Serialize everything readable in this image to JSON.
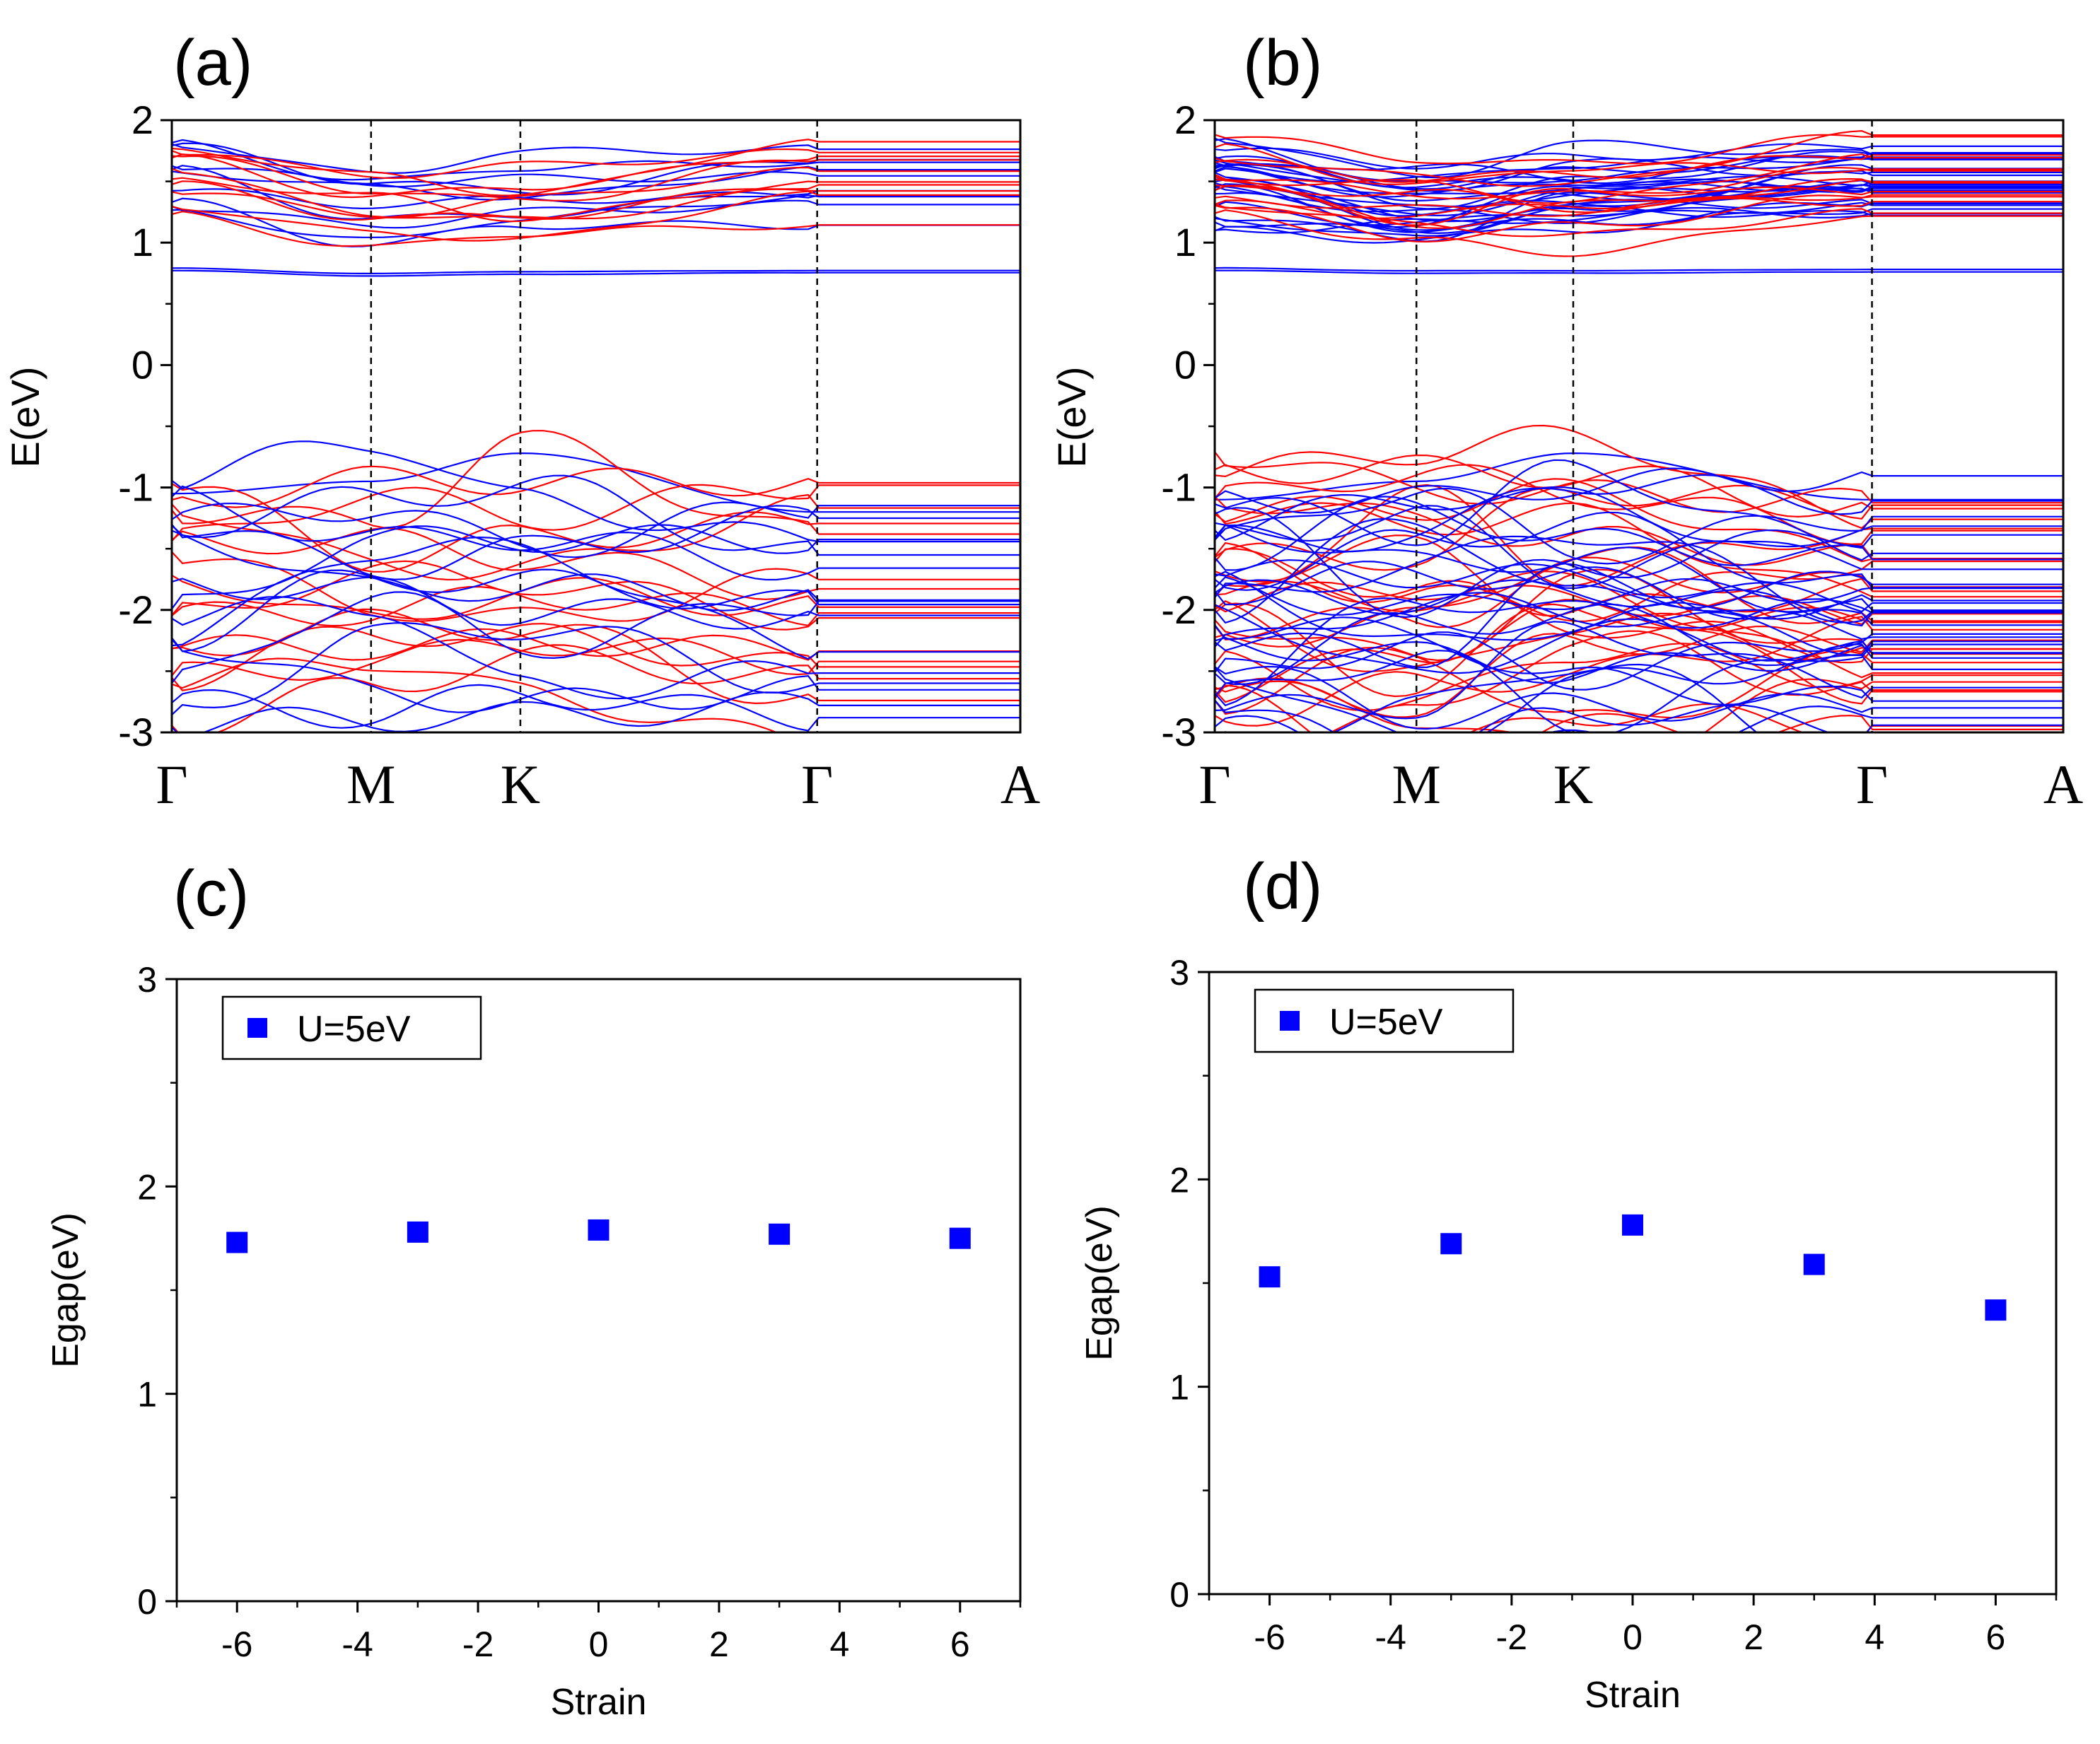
{
  "colors": {
    "spin_up": "#ff0000",
    "spin_down": "#0000ff",
    "marker": "#0000ff",
    "axis": "#000000"
  },
  "chart_data": [
    {
      "panel": "(a)",
      "type": "line",
      "title": "",
      "xlabel": "",
      "ylabel": "E(eV)",
      "ylim": [
        -3,
        2
      ],
      "yticks": [
        -3,
        -2,
        -1,
        0,
        1,
        2
      ],
      "kpoints": [
        "Γ",
        "M",
        "K",
        "Γ",
        "A"
      ],
      "kpath_positions": [
        0,
        0.2348,
        0.4108,
        0.7606,
        1.0
      ],
      "band_groups": [
        {
          "spin": "down",
          "center": [
            0.78,
            0.74,
            0.75,
            0.76,
            0.76
          ],
          "spread": 0.01,
          "count": 2
        },
        {
          "spin": "down",
          "center": [
            1.55,
            1.3,
            1.35,
            1.5,
            1.55
          ],
          "spread": 0.28,
          "count": 10
        },
        {
          "spin": "up",
          "center": [
            1.55,
            1.3,
            1.3,
            1.52,
            1.55
          ],
          "spread": 0.26,
          "count": 10
        },
        {
          "spin": "down",
          "center": [
            -1.05,
            -0.95,
            -0.72,
            -1.2,
            -1.2
          ],
          "spread": 0.0,
          "count": 1
        },
        {
          "spin": "up",
          "center": [
            -1.9,
            -1.9,
            -1.75,
            -1.9,
            -1.9
          ],
          "spread": 0.9,
          "count": 16
        },
        {
          "spin": "down",
          "center": [
            -2.0,
            -1.9,
            -1.8,
            -2.0,
            -2.0
          ],
          "spread": 0.95,
          "count": 16
        }
      ]
    },
    {
      "panel": "(b)",
      "type": "line",
      "title": "",
      "xlabel": "",
      "ylabel": "E(eV)",
      "ylim": [
        -3,
        2
      ],
      "yticks": [
        -3,
        -2,
        -1,
        0,
        1,
        2
      ],
      "kpoints": [
        "Γ",
        "M",
        "K",
        "Γ",
        "A"
      ],
      "kpath_positions": [
        0,
        0.2377,
        0.4225,
        0.7746,
        1.0
      ],
      "band_groups": [
        {
          "spin": "down",
          "center": [
            0.78,
            0.76,
            0.76,
            0.77,
            0.78
          ],
          "spread": 0.01,
          "count": 2
        },
        {
          "spin": "down",
          "center": [
            1.5,
            1.3,
            1.4,
            1.5,
            1.55
          ],
          "spread": 0.3,
          "count": 26
        },
        {
          "spin": "up",
          "center": [
            1.5,
            1.3,
            1.35,
            1.5,
            1.5
          ],
          "spread": 0.3,
          "count": 14
        },
        {
          "spin": "down",
          "center": [
            -1.1,
            -0.95,
            -0.72,
            -1.1,
            -1.15
          ],
          "spread": 0.0,
          "count": 1
        },
        {
          "spin": "up",
          "center": [
            -2.0,
            -2.0,
            -1.9,
            -2.0,
            -2.0
          ],
          "spread": 0.95,
          "count": 28
        },
        {
          "spin": "down",
          "center": [
            -2.0,
            -2.0,
            -1.95,
            -2.0,
            -2.0
          ],
          "spread": 0.95,
          "count": 32
        }
      ]
    },
    {
      "panel": "(c)",
      "type": "scatter",
      "title": "",
      "xlabel": "Strain",
      "ylabel": "Egap(eV)",
      "xlim": [
        -7,
        7
      ],
      "ylim": [
        0,
        3
      ],
      "xticks": [
        -6,
        -4,
        -2,
        0,
        2,
        4,
        6
      ],
      "yticks": [
        0,
        1,
        2,
        3
      ],
      "legend": "top-left",
      "series": [
        {
          "name": "U=5eV",
          "x": [
            -6,
            -3,
            0,
            3,
            6
          ],
          "y": [
            1.73,
            1.78,
            1.79,
            1.77,
            1.75
          ]
        }
      ]
    },
    {
      "panel": "(d)",
      "type": "scatter",
      "title": "",
      "xlabel": "Strain",
      "ylabel": "Egap(eV)",
      "xlim": [
        -7,
        7
      ],
      "ylim": [
        0,
        3
      ],
      "xticks": [
        -6,
        -4,
        -2,
        0,
        2,
        4,
        6
      ],
      "yticks": [
        0,
        1,
        2,
        3
      ],
      "legend": "top-left",
      "series": [
        {
          "name": "U=5eV",
          "x": [
            -6,
            -3,
            0,
            3,
            6
          ],
          "y": [
            1.53,
            1.69,
            1.78,
            1.59,
            1.37
          ]
        }
      ]
    }
  ]
}
